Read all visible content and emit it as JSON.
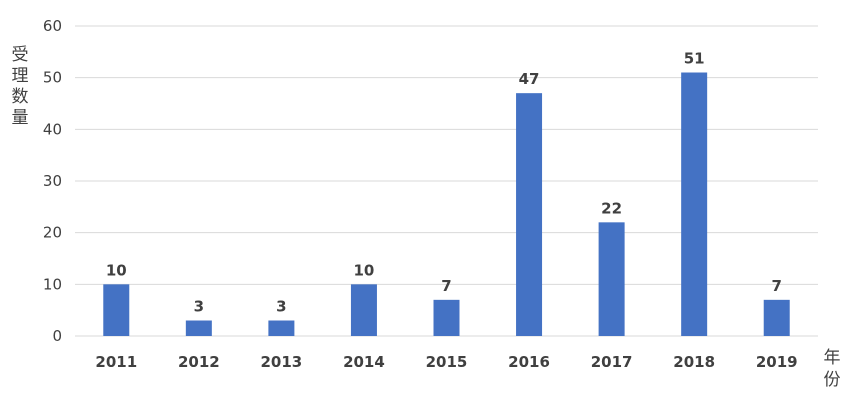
{
  "chart_data": {
    "type": "bar",
    "categories": [
      "2011",
      "2012",
      "2013",
      "2014",
      "2015",
      "2016",
      "2017",
      "2018",
      "2019"
    ],
    "values": [
      10,
      3,
      3,
      10,
      7,
      47,
      22,
      51,
      7
    ],
    "title": "",
    "xlabel": "年份",
    "ylabel": "受理数量",
    "ylim": [
      0,
      60
    ],
    "yticks": [
      0,
      10,
      20,
      30,
      40,
      50,
      60
    ],
    "grid": true,
    "legend": "none",
    "bar_color": "#4472C4",
    "grid_color": "#D9D9D9",
    "text_color": "#404040"
  }
}
